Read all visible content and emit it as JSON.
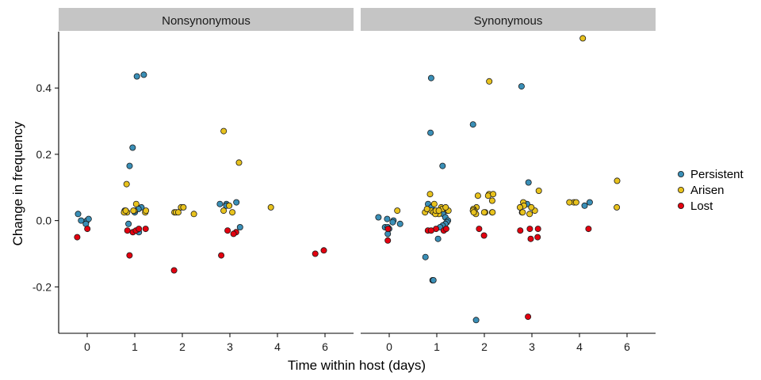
{
  "chart_data": {
    "type": "scatter",
    "xlabel": "Time within host (days)",
    "ylabel": "Change in frequency",
    "ylim": [
      -0.34,
      0.57
    ],
    "yticks": [
      -0.2,
      0.0,
      0.2,
      0.4
    ],
    "ytick_labels": [
      "-0.2",
      "0.0",
      "0.2",
      "0.4"
    ],
    "x_categories": [
      "0",
      "1",
      "2",
      "3",
      "4",
      "6"
    ],
    "grid": false,
    "legend_position": "right",
    "series": [
      {
        "name": "Persistent",
        "color": "#3a8fb7"
      },
      {
        "name": "Arisen",
        "color": "#e8c21d"
      },
      {
        "name": "Lost",
        "color": "#e3000f"
      }
    ],
    "panels": [
      {
        "title": "Nonsynonymous",
        "points": [
          {
            "x": 0,
            "y": 0.0,
            "s": "Persistent"
          },
          {
            "x": 0,
            "y": 0.005,
            "s": "Persistent"
          },
          {
            "x": 0,
            "y": 0.02,
            "s": "Persistent"
          },
          {
            "x": 0,
            "y": 0.0,
            "s": "Persistent"
          },
          {
            "x": 0,
            "y": -0.01,
            "s": "Persistent"
          },
          {
            "x": 0,
            "y": -0.025,
            "s": "Lost"
          },
          {
            "x": 0,
            "y": -0.05,
            "s": "Lost"
          },
          {
            "x": 1,
            "y": 0.44,
            "s": "Persistent"
          },
          {
            "x": 1,
            "y": 0.435,
            "s": "Persistent"
          },
          {
            "x": 1,
            "y": 0.22,
            "s": "Persistent"
          },
          {
            "x": 1,
            "y": 0.165,
            "s": "Persistent"
          },
          {
            "x": 1,
            "y": 0.04,
            "s": "Persistent"
          },
          {
            "x": 1,
            "y": 0.035,
            "s": "Persistent"
          },
          {
            "x": 1,
            "y": 0.03,
            "s": "Persistent"
          },
          {
            "x": 1,
            "y": 0.025,
            "s": "Persistent"
          },
          {
            "x": 1,
            "y": -0.01,
            "s": "Persistent"
          },
          {
            "x": 1,
            "y": -0.035,
            "s": "Persistent"
          },
          {
            "x": 1,
            "y": 0.11,
            "s": "Arisen"
          },
          {
            "x": 1,
            "y": 0.05,
            "s": "Arisen"
          },
          {
            "x": 1,
            "y": 0.03,
            "s": "Arisen"
          },
          {
            "x": 1,
            "y": 0.025,
            "s": "Arisen"
          },
          {
            "x": 1,
            "y": 0.025,
            "s": "Arisen"
          },
          {
            "x": 1,
            "y": 0.025,
            "s": "Arisen"
          },
          {
            "x": 1,
            "y": 0.03,
            "s": "Arisen"
          },
          {
            "x": 1,
            "y": 0.03,
            "s": "Arisen"
          },
          {
            "x": 1,
            "y": 0.03,
            "s": "Arisen"
          },
          {
            "x": 1,
            "y": -0.025,
            "s": "Lost"
          },
          {
            "x": 1,
            "y": -0.03,
            "s": "Lost"
          },
          {
            "x": 1,
            "y": -0.035,
            "s": "Lost"
          },
          {
            "x": 1,
            "y": -0.03,
            "s": "Lost"
          },
          {
            "x": 1,
            "y": -0.025,
            "s": "Lost"
          },
          {
            "x": 1,
            "y": -0.105,
            "s": "Lost"
          },
          {
            "x": 2,
            "y": 0.025,
            "s": "Arisen"
          },
          {
            "x": 2,
            "y": 0.02,
            "s": "Arisen"
          },
          {
            "x": 2,
            "y": 0.04,
            "s": "Arisen"
          },
          {
            "x": 2,
            "y": 0.025,
            "s": "Arisen"
          },
          {
            "x": 2,
            "y": 0.04,
            "s": "Arisen"
          },
          {
            "x": 2,
            "y": 0.025,
            "s": "Arisen"
          },
          {
            "x": 2,
            "y": -0.15,
            "s": "Lost"
          },
          {
            "x": 3,
            "y": 0.055,
            "s": "Persistent"
          },
          {
            "x": 3,
            "y": 0.05,
            "s": "Persistent"
          },
          {
            "x": 3,
            "y": 0.045,
            "s": "Persistent"
          },
          {
            "x": 3,
            "y": 0.05,
            "s": "Persistent"
          },
          {
            "x": 3,
            "y": -0.02,
            "s": "Persistent"
          },
          {
            "x": 3,
            "y": 0.27,
            "s": "Arisen"
          },
          {
            "x": 3,
            "y": 0.175,
            "s": "Arisen"
          },
          {
            "x": 3,
            "y": 0.045,
            "s": "Arisen"
          },
          {
            "x": 3,
            "y": 0.03,
            "s": "Arisen"
          },
          {
            "x": 3,
            "y": 0.025,
            "s": "Arisen"
          },
          {
            "x": 3,
            "y": -0.03,
            "s": "Lost"
          },
          {
            "x": 3,
            "y": -0.035,
            "s": "Lost"
          },
          {
            "x": 3,
            "y": -0.04,
            "s": "Lost"
          },
          {
            "x": 3,
            "y": -0.105,
            "s": "Lost"
          },
          {
            "x": 4,
            "y": 0.04,
            "s": "Arisen"
          },
          {
            "x": 6,
            "y": -0.09,
            "s": "Lost"
          },
          {
            "x": 6,
            "y": -0.1,
            "s": "Lost"
          }
        ]
      },
      {
        "title": "Synonymous",
        "points": [
          {
            "x": 0,
            "y": 0.01,
            "s": "Persistent"
          },
          {
            "x": 0,
            "y": 0.005,
            "s": "Persistent"
          },
          {
            "x": 0,
            "y": 0.0,
            "s": "Persistent"
          },
          {
            "x": 0,
            "y": -0.005,
            "s": "Persistent"
          },
          {
            "x": 0,
            "y": -0.01,
            "s": "Persistent"
          },
          {
            "x": 0,
            "y": -0.02,
            "s": "Persistent"
          },
          {
            "x": 0,
            "y": -0.02,
            "s": "Persistent"
          },
          {
            "x": 0,
            "y": -0.025,
            "s": "Persistent"
          },
          {
            "x": 0,
            "y": -0.04,
            "s": "Persistent"
          },
          {
            "x": 0,
            "y": 0.03,
            "s": "Arisen"
          },
          {
            "x": 0,
            "y": -0.025,
            "s": "Lost"
          },
          {
            "x": 0,
            "y": -0.06,
            "s": "Lost"
          },
          {
            "x": 1,
            "y": 0.43,
            "s": "Persistent"
          },
          {
            "x": 1,
            "y": 0.265,
            "s": "Persistent"
          },
          {
            "x": 1,
            "y": 0.165,
            "s": "Persistent"
          },
          {
            "x": 1,
            "y": 0.05,
            "s": "Persistent"
          },
          {
            "x": 1,
            "y": 0.04,
            "s": "Persistent"
          },
          {
            "x": 1,
            "y": 0.02,
            "s": "Persistent"
          },
          {
            "x": 1,
            "y": 0.01,
            "s": "Persistent"
          },
          {
            "x": 1,
            "y": 0.0,
            "s": "Persistent"
          },
          {
            "x": 1,
            "y": -0.005,
            "s": "Persistent"
          },
          {
            "x": 1,
            "y": -0.01,
            "s": "Persistent"
          },
          {
            "x": 1,
            "y": -0.015,
            "s": "Persistent"
          },
          {
            "x": 1,
            "y": -0.02,
            "s": "Persistent"
          },
          {
            "x": 1,
            "y": -0.055,
            "s": "Persistent"
          },
          {
            "x": 1,
            "y": -0.11,
            "s": "Persistent"
          },
          {
            "x": 1,
            "y": -0.18,
            "s": "Persistent"
          },
          {
            "x": 1,
            "y": -0.18,
            "s": "Persistent"
          },
          {
            "x": 1,
            "y": 0.08,
            "s": "Arisen"
          },
          {
            "x": 1,
            "y": 0.05,
            "s": "Arisen"
          },
          {
            "x": 1,
            "y": 0.04,
            "s": "Arisen"
          },
          {
            "x": 1,
            "y": 0.035,
            "s": "Arisen"
          },
          {
            "x": 1,
            "y": 0.03,
            "s": "Arisen"
          },
          {
            "x": 1,
            "y": 0.03,
            "s": "Arisen"
          },
          {
            "x": 1,
            "y": 0.025,
            "s": "Arisen"
          },
          {
            "x": 1,
            "y": 0.025,
            "s": "Arisen"
          },
          {
            "x": 1,
            "y": 0.02,
            "s": "Arisen"
          },
          {
            "x": 1,
            "y": 0.02,
            "s": "Arisen"
          },
          {
            "x": 1,
            "y": 0.035,
            "s": "Arisen"
          },
          {
            "x": 1,
            "y": 0.03,
            "s": "Arisen"
          },
          {
            "x": 1,
            "y": 0.03,
            "s": "Arisen"
          },
          {
            "x": 1,
            "y": 0.04,
            "s": "Arisen"
          },
          {
            "x": 1,
            "y": 0.03,
            "s": "Arisen"
          },
          {
            "x": 1,
            "y": -0.025,
            "s": "Lost"
          },
          {
            "x": 1,
            "y": -0.03,
            "s": "Lost"
          },
          {
            "x": 1,
            "y": -0.03,
            "s": "Lost"
          },
          {
            "x": 1,
            "y": -0.025,
            "s": "Lost"
          },
          {
            "x": 1,
            "y": -0.03,
            "s": "Lost"
          },
          {
            "x": 2,
            "y": 0.29,
            "s": "Persistent"
          },
          {
            "x": 2,
            "y": -0.3,
            "s": "Persistent"
          },
          {
            "x": 2,
            "y": 0.42,
            "s": "Arisen"
          },
          {
            "x": 2,
            "y": 0.08,
            "s": "Arisen"
          },
          {
            "x": 2,
            "y": 0.075,
            "s": "Arisen"
          },
          {
            "x": 2,
            "y": 0.08,
            "s": "Arisen"
          },
          {
            "x": 2,
            "y": 0.075,
            "s": "Arisen"
          },
          {
            "x": 2,
            "y": 0.06,
            "s": "Arisen"
          },
          {
            "x": 2,
            "y": 0.04,
            "s": "Arisen"
          },
          {
            "x": 2,
            "y": 0.035,
            "s": "Arisen"
          },
          {
            "x": 2,
            "y": 0.03,
            "s": "Arisen"
          },
          {
            "x": 2,
            "y": 0.03,
            "s": "Arisen"
          },
          {
            "x": 2,
            "y": 0.025,
            "s": "Arisen"
          },
          {
            "x": 2,
            "y": 0.025,
            "s": "Arisen"
          },
          {
            "x": 2,
            "y": 0.025,
            "s": "Arisen"
          },
          {
            "x": 2,
            "y": 0.02,
            "s": "Arisen"
          },
          {
            "x": 2,
            "y": 0.025,
            "s": "Arisen"
          },
          {
            "x": 2,
            "y": 0.025,
            "s": "Arisen"
          },
          {
            "x": 2,
            "y": -0.025,
            "s": "Lost"
          },
          {
            "x": 2,
            "y": -0.045,
            "s": "Lost"
          },
          {
            "x": 3,
            "y": 0.405,
            "s": "Persistent"
          },
          {
            "x": 3,
            "y": 0.115,
            "s": "Persistent"
          },
          {
            "x": 3,
            "y": 0.05,
            "s": "Persistent"
          },
          {
            "x": 3,
            "y": 0.05,
            "s": "Persistent"
          },
          {
            "x": 3,
            "y": 0.09,
            "s": "Arisen"
          },
          {
            "x": 3,
            "y": 0.055,
            "s": "Arisen"
          },
          {
            "x": 3,
            "y": 0.045,
            "s": "Arisen"
          },
          {
            "x": 3,
            "y": 0.04,
            "s": "Arisen"
          },
          {
            "x": 3,
            "y": 0.03,
            "s": "Arisen"
          },
          {
            "x": 3,
            "y": 0.025,
            "s": "Arisen"
          },
          {
            "x": 3,
            "y": 0.02,
            "s": "Arisen"
          },
          {
            "x": 3,
            "y": 0.025,
            "s": "Arisen"
          },
          {
            "x": 3,
            "y": 0.04,
            "s": "Arisen"
          },
          {
            "x": 3,
            "y": -0.025,
            "s": "Lost"
          },
          {
            "x": 3,
            "y": -0.03,
            "s": "Lost"
          },
          {
            "x": 3,
            "y": -0.025,
            "s": "Lost"
          },
          {
            "x": 3,
            "y": -0.055,
            "s": "Lost"
          },
          {
            "x": 3,
            "y": -0.05,
            "s": "Lost"
          },
          {
            "x": 3,
            "y": -0.29,
            "s": "Lost"
          },
          {
            "x": 4,
            "y": 0.055,
            "s": "Persistent"
          },
          {
            "x": 4,
            "y": 0.045,
            "s": "Persistent"
          },
          {
            "x": 4,
            "y": 0.55,
            "s": "Arisen"
          },
          {
            "x": 4,
            "y": 0.055,
            "s": "Arisen"
          },
          {
            "x": 4,
            "y": 0.055,
            "s": "Arisen"
          },
          {
            "x": 4,
            "y": 0.055,
            "s": "Arisen"
          },
          {
            "x": 4,
            "y": -0.025,
            "s": "Lost"
          },
          {
            "x": 6,
            "y": 0.12,
            "s": "Arisen"
          },
          {
            "x": 6,
            "y": 0.04,
            "s": "Arisen"
          }
        ]
      }
    ]
  }
}
